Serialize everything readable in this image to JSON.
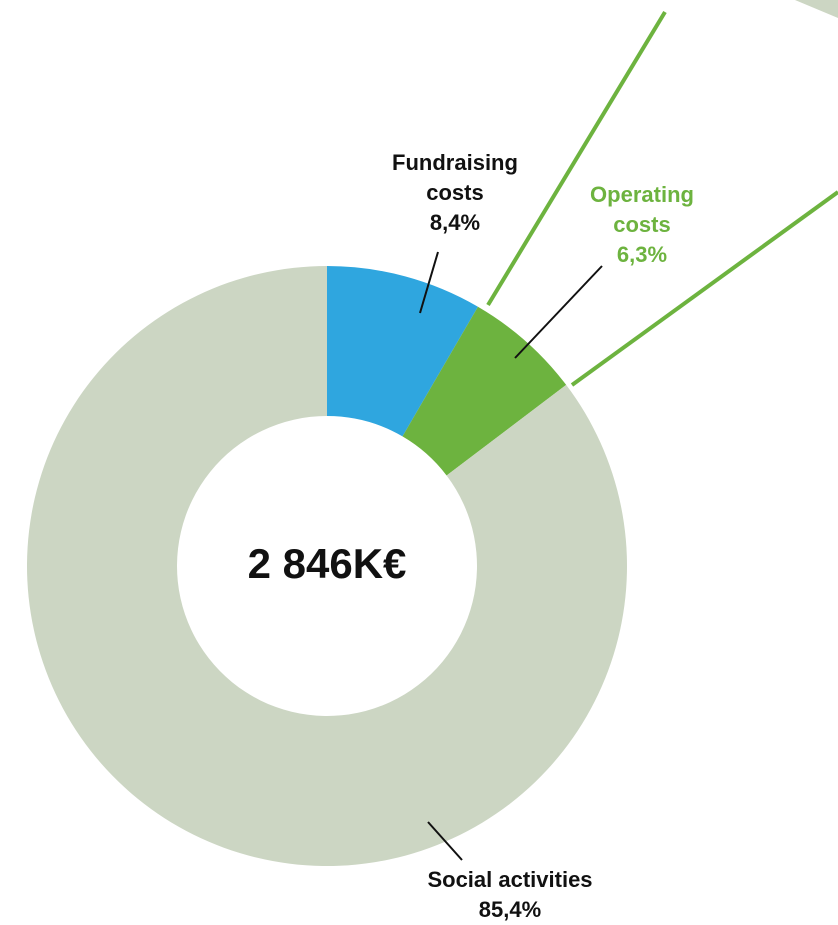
{
  "chart_data": {
    "type": "donut",
    "center_label": "2 846K€",
    "categories": [
      "Fundraising costs",
      "Operating costs",
      "Social activities"
    ],
    "values": [
      8.4,
      6.3,
      85.4
    ],
    "value_labels": [
      "8,4%",
      "6,3%",
      "85,4%"
    ],
    "colors": [
      "#2fa6df",
      "#6db33f",
      "#ccd6c3"
    ]
  }
}
